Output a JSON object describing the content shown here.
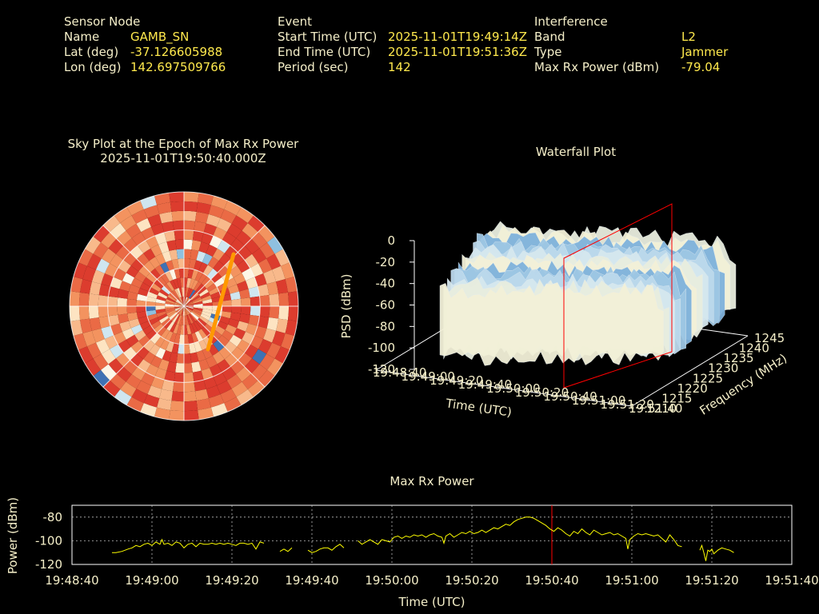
{
  "header": {
    "sensor": {
      "title": "Sensor Node",
      "rows": [
        {
          "label": "Name",
          "value": "GAMB_SN"
        },
        {
          "label": "Lat (deg)",
          "value": "-37.126605988"
        },
        {
          "label": "Lon (deg)",
          "value": "142.697509766"
        }
      ]
    },
    "event": {
      "title": "Event",
      "rows": [
        {
          "label": "Start Time (UTC)",
          "value": "2025-11-01T19:49:14Z"
        },
        {
          "label": "End Time (UTC)",
          "value": "2025-11-01T19:51:36Z"
        },
        {
          "label": "Period (sec)",
          "value": "142"
        }
      ]
    },
    "interference": {
      "title": "Interference",
      "rows": [
        {
          "label": "Band",
          "value": "L2"
        },
        {
          "label": "Type",
          "value": "Jammer"
        },
        {
          "label": "Max Rx Power (dBm)",
          "value": "-79.04"
        }
      ]
    }
  },
  "colors": {
    "label": "#f5efc9",
    "value": "#ffe94d",
    "marker": "#ff0000",
    "trace": "#ffff00",
    "sky_track": "#ff9900"
  },
  "chart_data": [
    {
      "type": "heatmap",
      "title": "Sky Plot at the Epoch of Max Rx Power",
      "subtitle": "2025-11-01T19:50:40.000Z",
      "projection": "polar",
      "grid": true,
      "colormap": [
        "#dc3c2e",
        "#ea6a45",
        "#f3935f",
        "#f8b98b",
        "#fde4c2",
        "#fdf6e6",
        "#cfe6f0",
        "#8fc0df",
        "#3f72b4",
        "#1b2c8f"
      ],
      "track": {
        "color": "#ff9900",
        "az_deg": [
          30,
          90
        ],
        "el_deg": [
          22,
          85
        ]
      }
    },
    {
      "type": "area",
      "subtitle": "Waterfall Plot",
      "xlabel": "Time (UTC)",
      "ylabel": "Frequency (MHz)",
      "zlabel": "PSD (dBm)",
      "x_ticks": [
        "19:48:40",
        "19:49:00",
        "19:49:20",
        "19:49:40",
        "19:50:00",
        "19:50:20",
        "19:50:40",
        "19:51:00",
        "19:51:20",
        "19:51:40"
      ],
      "y_ticks": [
        1210,
        1215,
        1220,
        1225,
        1230,
        1235,
        1240,
        1245
      ],
      "z_ticks": [
        0,
        -20,
        -40,
        -60,
        -80,
        -100,
        -120
      ],
      "zlim": [
        -120,
        0
      ],
      "marker_time": "19:50:40",
      "surface_level_dbm": -50
    },
    {
      "type": "line",
      "title": "Max Rx Power",
      "xlabel": "Time (UTC)",
      "ylabel": "Power (dBm)",
      "x_ticks": [
        "19:48:40",
        "19:49:00",
        "19:49:20",
        "19:49:40",
        "19:50:00",
        "19:50:20",
        "19:50:40",
        "19:51:00",
        "19:51:20",
        "19:51:40"
      ],
      "xlim_sec": [
        0,
        180
      ],
      "ylim": [
        -120,
        -70
      ],
      "y_ticks": [
        -80,
        -100,
        -120
      ],
      "grid": true,
      "marker_time": "19:50:40",
      "segments": [
        [
          [
            20,
            -110
          ],
          [
            22,
            -110
          ],
          [
            25,
            -109
          ],
          [
            28,
            -107
          ],
          [
            30,
            -106
          ],
          [
            32,
            -104
          ],
          [
            34,
            -105
          ],
          [
            36,
            -103
          ],
          [
            38,
            -102
          ],
          [
            40,
            -104
          ],
          [
            42,
            -101
          ],
          [
            44,
            -103
          ],
          [
            45,
            -99
          ],
          [
            46,
            -103
          ],
          [
            48,
            -102
          ],
          [
            50,
            -104
          ],
          [
            52,
            -101
          ],
          [
            54,
            -102
          ],
          [
            56,
            -106
          ],
          [
            58,
            -103
          ],
          [
            60,
            -102
          ],
          [
            62,
            -105
          ],
          [
            64,
            -102
          ],
          [
            66,
            -103
          ],
          [
            68,
            -103
          ],
          [
            70,
            -102
          ],
          [
            72,
            -103
          ],
          [
            74,
            -102
          ],
          [
            76,
            -103
          ],
          [
            78,
            -102
          ],
          [
            80,
            -103
          ],
          [
            82,
            -104
          ],
          [
            84,
            -102
          ],
          [
            86,
            -102
          ],
          [
            88,
            -103
          ],
          [
            90,
            -102
          ],
          [
            92,
            -107
          ],
          [
            94,
            -101
          ],
          [
            96,
            -102
          ]
        ],
        [
          [
            104,
            -109
          ],
          [
            106,
            -107
          ],
          [
            108,
            -109
          ],
          [
            110,
            -106
          ]
        ],
        [
          [
            118,
            -108
          ],
          [
            120,
            -110
          ],
          [
            122,
            -109
          ],
          [
            124,
            -107
          ],
          [
            126,
            -106
          ],
          [
            128,
            -106
          ],
          [
            130,
            -108
          ],
          [
            132,
            -105
          ],
          [
            134,
            -103
          ],
          [
            136,
            -106
          ]
        ],
        [
          [
            143,
            -100
          ],
          [
            145,
            -103
          ],
          [
            147,
            -101
          ],
          [
            149,
            -99
          ],
          [
            151,
            -101
          ],
          [
            153,
            -103
          ],
          [
            155,
            -99
          ],
          [
            157,
            -100
          ],
          [
            159,
            -101
          ],
          [
            161,
            -97
          ],
          [
            163,
            -96
          ],
          [
            165,
            -98
          ],
          [
            167,
            -96
          ],
          [
            169,
            -97
          ],
          [
            171,
            -95
          ],
          [
            173,
            -96
          ],
          [
            175,
            -95
          ],
          [
            177,
            -97
          ],
          [
            179,
            -95
          ],
          [
            181,
            -94
          ],
          [
            183,
            -96
          ],
          [
            185,
            -97
          ],
          [
            186,
            -102
          ],
          [
            187,
            -96
          ],
          [
            189,
            -94
          ],
          [
            191,
            -97
          ],
          [
            193,
            -95
          ],
          [
            195,
            -93
          ],
          [
            197,
            -94
          ],
          [
            199,
            -92
          ],
          [
            201,
            -94
          ],
          [
            203,
            -93
          ],
          [
            205,
            -91
          ],
          [
            207,
            -93
          ],
          [
            209,
            -91
          ],
          [
            211,
            -89
          ],
          [
            213,
            -90
          ],
          [
            215,
            -88
          ],
          [
            217,
            -86
          ],
          [
            219,
            -87
          ],
          [
            221,
            -84
          ],
          [
            223,
            -82
          ],
          [
            225,
            -81
          ],
          [
            227,
            -80
          ],
          [
            229,
            -80
          ],
          [
            231,
            -81
          ],
          [
            233,
            -83
          ],
          [
            235,
            -85
          ],
          [
            237,
            -87
          ],
          [
            239,
            -90
          ],
          [
            241,
            -92
          ],
          [
            243,
            -89
          ],
          [
            245,
            -91
          ],
          [
            247,
            -94
          ],
          [
            249,
            -96
          ],
          [
            251,
            -92
          ],
          [
            253,
            -94
          ],
          [
            255,
            -90
          ],
          [
            257,
            -93
          ],
          [
            259,
            -95
          ],
          [
            261,
            -91
          ],
          [
            263,
            -93
          ],
          [
            265,
            -95
          ],
          [
            267,
            -94
          ],
          [
            269,
            -93
          ],
          [
            271,
            -95
          ],
          [
            273,
            -94
          ],
          [
            275,
            -96
          ],
          [
            277,
            -98
          ],
          [
            278,
            -107
          ],
          [
            279,
            -99
          ],
          [
            281,
            -96
          ],
          [
            283,
            -94
          ],
          [
            285,
            -95
          ],
          [
            287,
            -94
          ],
          [
            289,
            -95
          ],
          [
            291,
            -96
          ],
          [
            293,
            -95
          ],
          [
            295,
            -98
          ],
          [
            297,
            -101
          ],
          [
            299,
            -95
          ],
          [
            301,
            -99
          ],
          [
            303,
            -104
          ],
          [
            305,
            -105
          ]
        ],
        [
          [
            314,
            -108
          ],
          [
            315,
            -104
          ],
          [
            316,
            -110
          ],
          [
            317,
            -117
          ],
          [
            318,
            -108
          ],
          [
            319,
            -109
          ],
          [
            320,
            -107
          ],
          [
            321,
            -111
          ],
          [
            323,
            -108
          ],
          [
            325,
            -106
          ],
          [
            327,
            -107
          ],
          [
            329,
            -108
          ],
          [
            331,
            -110
          ]
        ]
      ]
    }
  ],
  "plots": {
    "sky_title": "Sky Plot at the Epoch of Max Rx Power",
    "sky_subtitle": "2025-11-01T19:50:40.000Z",
    "waterfall_title": "Waterfall Plot",
    "rx_title": "Max Rx Power"
  }
}
